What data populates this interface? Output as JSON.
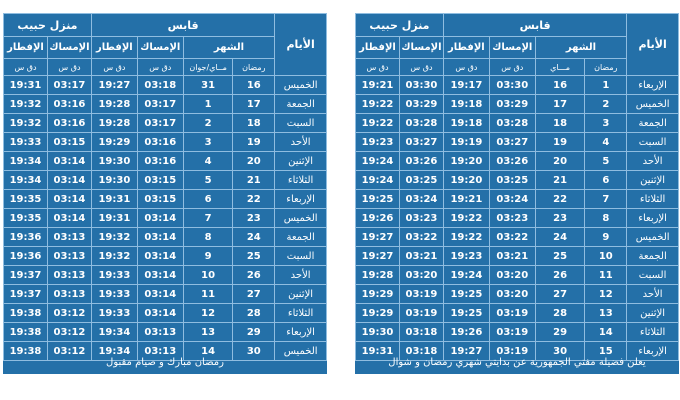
{
  "left": {
    "headers": {
      "days": "الأيام",
      "month": "الشهر",
      "gabes": "قابس",
      "menzel": "منزل حبيب",
      "ramadan": "رمضان",
      "may_june": "مــاي/جوان",
      "imsak": "الإمساك",
      "iftar": "الإفطار",
      "dq_s": "دق س"
    },
    "rows": [
      {
        "day": "الخميس",
        "r": "16",
        "m": "31",
        "gi": "03:18",
        "gf": "19:27",
        "mi": "03:17",
        "mf": "19:31"
      },
      {
        "day": "الجمعة",
        "r": "17",
        "m": "1",
        "gi": "03:17",
        "gf": "19:28",
        "mi": "03:16",
        "mf": "19:32"
      },
      {
        "day": "السبت",
        "r": "18",
        "m": "2",
        "gi": "03:17",
        "gf": "19:28",
        "mi": "03:16",
        "mf": "19:32"
      },
      {
        "day": "الأحد",
        "r": "19",
        "m": "3",
        "gi": "03:16",
        "gf": "19:29",
        "mi": "03:15",
        "mf": "19:33"
      },
      {
        "day": "الإثنين",
        "r": "20",
        "m": "4",
        "gi": "03:16",
        "gf": "19:30",
        "mi": "03:14",
        "mf": "19:34"
      },
      {
        "day": "الثلاثاء",
        "r": "21",
        "m": "5",
        "gi": "03:15",
        "gf": "19:30",
        "mi": "03:14",
        "mf": "19:34"
      },
      {
        "day": "الإربعاء",
        "r": "22",
        "m": "6",
        "gi": "03:15",
        "gf": "19:31",
        "mi": "03:14",
        "mf": "19:35"
      },
      {
        "day": "الخميس",
        "r": "23",
        "m": "7",
        "gi": "03:14",
        "gf": "19:31",
        "mi": "03:14",
        "mf": "19:35"
      },
      {
        "day": "الجمعة",
        "r": "24",
        "m": "8",
        "gi": "03:14",
        "gf": "19:32",
        "mi": "03:13",
        "mf": "19:36"
      },
      {
        "day": "السبت",
        "r": "25",
        "m": "9",
        "gi": "03:14",
        "gf": "19:32",
        "mi": "03:13",
        "mf": "19:36"
      },
      {
        "day": "الأحد",
        "r": "26",
        "m": "10",
        "gi": "03:14",
        "gf": "19:33",
        "mi": "03:13",
        "mf": "19:37"
      },
      {
        "day": "الإثنين",
        "r": "27",
        "m": "11",
        "gi": "03:14",
        "gf": "19:33",
        "mi": "03:13",
        "mf": "19:37"
      },
      {
        "day": "الثلاثاء",
        "r": "28",
        "m": "12",
        "gi": "03:14",
        "gf": "19:33",
        "mi": "03:12",
        "mf": "19:38"
      },
      {
        "day": "الإربعاء",
        "r": "29",
        "m": "13",
        "gi": "03:13",
        "gf": "19:34",
        "mi": "03:12",
        "mf": "19:38"
      },
      {
        "day": "الخميس",
        "r": "30",
        "m": "14",
        "gi": "03:13",
        "gf": "19:34",
        "mi": "03:12",
        "mf": "19:38"
      }
    ],
    "footer": "رمضان مبارك و صيام مقبول"
  },
  "right": {
    "headers": {
      "days": "الأيام",
      "month": "الشهر",
      "gabes": "قابس",
      "menzel": "منزل حبيب",
      "ramadan": "رمضان",
      "may_june": "مـــاي",
      "imsak": "الإمساك",
      "iftar": "الإفطار",
      "dq_s": "دق س"
    },
    "rows": [
      {
        "day": "الإربعاء",
        "r": "1",
        "m": "16",
        "gi": "03:30",
        "gf": "19:17",
        "mi": "03:30",
        "mf": "19:21"
      },
      {
        "day": "الخميس",
        "r": "2",
        "m": "17",
        "gi": "03:29",
        "gf": "19:18",
        "mi": "03:29",
        "mf": "19:22"
      },
      {
        "day": "الجمعة",
        "r": "3",
        "m": "18",
        "gi": "03:28",
        "gf": "19:18",
        "mi": "03:28",
        "mf": "19:22"
      },
      {
        "day": "السبت",
        "r": "4",
        "m": "19",
        "gi": "03:27",
        "gf": "19:19",
        "mi": "03:27",
        "mf": "19:23"
      },
      {
        "day": "الأحد",
        "r": "5",
        "m": "20",
        "gi": "03:26",
        "gf": "19:20",
        "mi": "03:26",
        "mf": "19:24"
      },
      {
        "day": "الإثنين",
        "r": "6",
        "m": "21",
        "gi": "03:25",
        "gf": "19:20",
        "mi": "03:25",
        "mf": "19:24"
      },
      {
        "day": "الثلاثاء",
        "r": "7",
        "m": "22",
        "gi": "03:24",
        "gf": "19:21",
        "mi": "03:24",
        "mf": "19:25"
      },
      {
        "day": "الإربعاء",
        "r": "8",
        "m": "23",
        "gi": "03:23",
        "gf": "19:22",
        "mi": "03:23",
        "mf": "19:26"
      },
      {
        "day": "الخميس",
        "r": "9",
        "m": "24",
        "gi": "03:22",
        "gf": "19:22",
        "mi": "03:22",
        "mf": "19:27"
      },
      {
        "day": "الجمعة",
        "r": "10",
        "m": "25",
        "gi": "03:21",
        "gf": "19:23",
        "mi": "03:21",
        "mf": "19:27"
      },
      {
        "day": "السبت",
        "r": "11",
        "m": "26",
        "gi": "03:20",
        "gf": "19:24",
        "mi": "03:20",
        "mf": "19:28"
      },
      {
        "day": "الأحد",
        "r": "12",
        "m": "27",
        "gi": "03:20",
        "gf": "19:25",
        "mi": "03:19",
        "mf": "19:29"
      },
      {
        "day": "الإثنين",
        "r": "13",
        "m": "28",
        "gi": "03:19",
        "gf": "19:25",
        "mi": "03:19",
        "mf": "19:29"
      },
      {
        "day": "الثلاثاء",
        "r": "14",
        "m": "29",
        "gi": "03:19",
        "gf": "19:26",
        "mi": "03:18",
        "mf": "19:30"
      },
      {
        "day": "الإربعاء",
        "r": "15",
        "m": "30",
        "gi": "03:19",
        "gf": "19:27",
        "mi": "03:18",
        "mf": "19:31"
      }
    ],
    "footer": "يعلن فضيلة مفتي الجمهورية عن بدايتي شهري رمضان و شوال"
  }
}
